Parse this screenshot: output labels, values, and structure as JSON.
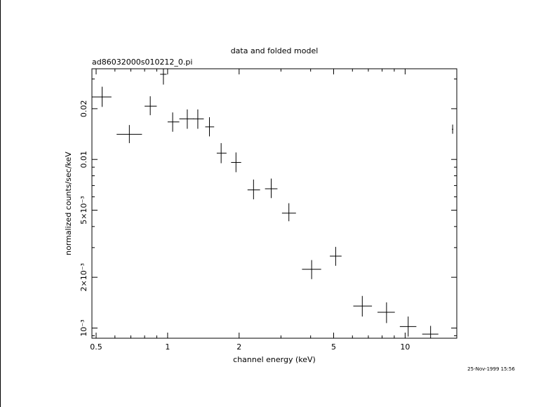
{
  "chart_data": {
    "type": "scatter",
    "title": "data and folded model",
    "subtitle": "ad86032000s010212_0.pi",
    "xlabel": "channel energy (keV)",
    "ylabel": "normalized counts/sec/keV",
    "timestamp": "25-Nov-1999 15:56",
    "xscale": "log",
    "yscale": "log",
    "xlim": [
      0.48,
      16.5
    ],
    "ylim": [
      0.00087,
      0.0345
    ],
    "x_ticks": [
      {
        "value": 0.5,
        "label": "0.5"
      },
      {
        "value": 1,
        "label": "1"
      },
      {
        "value": 2,
        "label": "2"
      },
      {
        "value": 5,
        "label": "5"
      },
      {
        "value": 10,
        "label": "10"
      }
    ],
    "y_ticks": [
      {
        "value": 0.001,
        "label": "10⁻³"
      },
      {
        "value": 0.002,
        "label": "2×10⁻³"
      },
      {
        "value": 0.005,
        "label": "5×10⁻³"
      },
      {
        "value": 0.01,
        "label": "0.01"
      },
      {
        "value": 0.02,
        "label": "0.02"
      }
    ],
    "points": [
      {
        "x": 0.53,
        "xlo": 0.48,
        "xhi": 0.58,
        "y": 0.0235,
        "ylo": 0.0205,
        "yhi": 0.027
      },
      {
        "x": 0.69,
        "xlo": 0.61,
        "xhi": 0.78,
        "y": 0.0141,
        "ylo": 0.0125,
        "yhi": 0.016
      },
      {
        "x": 0.845,
        "xlo": 0.8,
        "xhi": 0.9,
        "y": 0.0207,
        "ylo": 0.0183,
        "yhi": 0.0237
      },
      {
        "x": 0.96,
        "xlo": 0.93,
        "xhi": 0.99,
        "y": 0.032,
        "ylo": 0.0278,
        "yhi": 0.0345
      },
      {
        "x": 1.05,
        "xlo": 1.0,
        "xhi": 1.12,
        "y": 0.0167,
        "ylo": 0.0146,
        "yhi": 0.019
      },
      {
        "x": 1.21,
        "xlo": 1.12,
        "xhi": 1.29,
        "y": 0.0174,
        "ylo": 0.0152,
        "yhi": 0.0198
      },
      {
        "x": 1.34,
        "xlo": 1.28,
        "xhi": 1.42,
        "y": 0.0174,
        "ylo": 0.0152,
        "yhi": 0.0198
      },
      {
        "x": 1.5,
        "xlo": 1.44,
        "xhi": 1.57,
        "y": 0.0156,
        "ylo": 0.0137,
        "yhi": 0.0178
      },
      {
        "x": 1.68,
        "xlo": 1.61,
        "xhi": 1.77,
        "y": 0.0109,
        "ylo": 0.0095,
        "yhi": 0.0125
      },
      {
        "x": 1.94,
        "xlo": 1.85,
        "xhi": 2.04,
        "y": 0.0096,
        "ylo": 0.0084,
        "yhi": 0.011
      },
      {
        "x": 2.3,
        "xlo": 2.17,
        "xhi": 2.45,
        "y": 0.0066,
        "ylo": 0.0058,
        "yhi": 0.0076
      },
      {
        "x": 2.73,
        "xlo": 2.57,
        "xhi": 2.9,
        "y": 0.0067,
        "ylo": 0.0059,
        "yhi": 0.0077
      },
      {
        "x": 3.24,
        "xlo": 3.03,
        "xhi": 3.47,
        "y": 0.0048,
        "ylo": 0.0043,
        "yhi": 0.0055
      },
      {
        "x": 4.04,
        "xlo": 3.68,
        "xhi": 4.43,
        "y": 0.00223,
        "ylo": 0.00195,
        "yhi": 0.00253
      },
      {
        "x": 5.1,
        "xlo": 4.82,
        "xhi": 5.4,
        "y": 0.00267,
        "ylo": 0.00234,
        "yhi": 0.00303
      },
      {
        "x": 6.6,
        "xlo": 6.05,
        "xhi": 7.25,
        "y": 0.00135,
        "ylo": 0.00117,
        "yhi": 0.00155
      },
      {
        "x": 8.35,
        "xlo": 7.65,
        "xhi": 9.05,
        "y": 0.00124,
        "ylo": 0.00107,
        "yhi": 0.00142
      },
      {
        "x": 10.3,
        "xlo": 9.5,
        "xhi": 11.15,
        "y": 0.00102,
        "ylo": 0.00089,
        "yhi": 0.00117
      },
      {
        "x": 12.8,
        "xlo": 11.8,
        "xhi": 13.8,
        "y": 0.00092,
        "ylo": 0.00087,
        "yhi": 0.00103
      },
      {
        "x": 15.85,
        "xlo": 15.75,
        "xhi": 15.95,
        "y": 0.0151,
        "ylo": 0.0142,
        "yhi": 0.0161
      }
    ]
  }
}
